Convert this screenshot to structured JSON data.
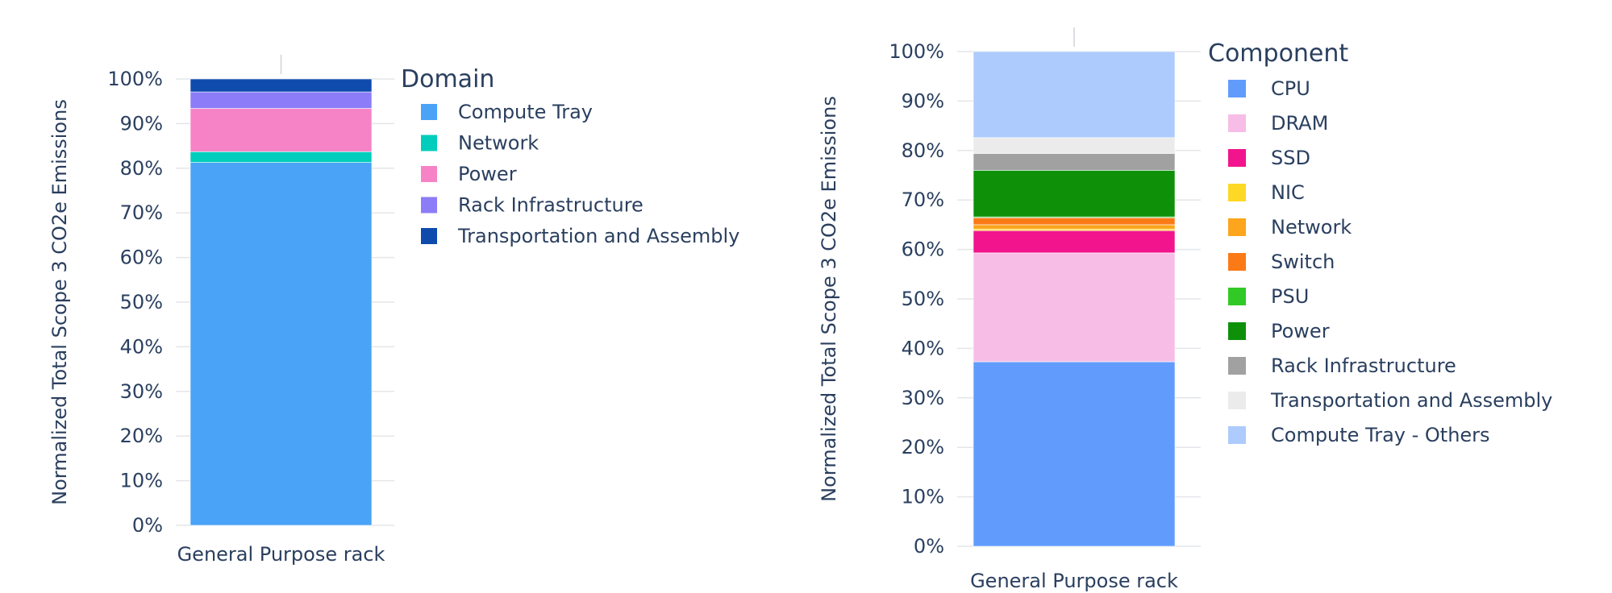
{
  "chart_data": [
    {
      "type": "bar",
      "stacked": true,
      "categories": [
        "General Purpose rack"
      ],
      "ylabel": "Normalized Total Scope 3 CO2e Emissions",
      "xlabel": "",
      "ylim": [
        0,
        100
      ],
      "yticks": [
        "0%",
        "10%",
        "20%",
        "30%",
        "40%",
        "50%",
        "60%",
        "70%",
        "80%",
        "90%",
        "100%"
      ],
      "legend_title": "Domain",
      "legend_placement": "right",
      "series": [
        {
          "name": "Compute Tray",
          "values": [
            81.3
          ],
          "color": "#4aa3f7"
        },
        {
          "name": "Network",
          "values": [
            2.4
          ],
          "color": "#00cdbb"
        },
        {
          "name": "Power",
          "values": [
            9.7
          ],
          "color": "#f783c7"
        },
        {
          "name": "Rack Infrastructure",
          "values": [
            3.7
          ],
          "color": "#8c7cf7"
        },
        {
          "name": "Transportation and Assembly",
          "values": [
            2.9
          ],
          "color": "#0f4bad"
        }
      ]
    },
    {
      "type": "bar",
      "stacked": true,
      "categories": [
        "General Purpose rack"
      ],
      "ylabel": "Normalized Total Scope 3 CO2e Emissions",
      "xlabel": "",
      "ylim": [
        0,
        100
      ],
      "yticks": [
        "0%",
        "10%",
        "20%",
        "30%",
        "40%",
        "50%",
        "60%",
        "70%",
        "80%",
        "90%",
        "100%"
      ],
      "legend_title": "Component",
      "legend_placement": "right",
      "series": [
        {
          "name": "CPU",
          "values": [
            37.3
          ],
          "color": "#619cfd"
        },
        {
          "name": "DRAM",
          "values": [
            22.0
          ],
          "color": "#f7bde6"
        },
        {
          "name": "SSD",
          "values": [
            4.5
          ],
          "color": "#f2148c"
        },
        {
          "name": "NIC",
          "values": [
            0.3
          ],
          "color": "#fdd825"
        },
        {
          "name": "Network",
          "values": [
            0.9
          ],
          "color": "#fda51c"
        },
        {
          "name": "Switch",
          "values": [
            1.4
          ],
          "color": "#fb7a16"
        },
        {
          "name": "PSU",
          "values": [
            0.2
          ],
          "color": "#31c925"
        },
        {
          "name": "Power",
          "values": [
            9.4
          ],
          "color": "#0e9109"
        },
        {
          "name": "Rack Infrastructure",
          "values": [
            3.4
          ],
          "color": "#a1a1a1"
        },
        {
          "name": "Transportation and Assembly",
          "values": [
            3.2
          ],
          "color": "#ebebeb"
        },
        {
          "name": "Compute Tray - Others",
          "values": [
            17.4
          ],
          "color": "#adcbfc"
        }
      ]
    }
  ]
}
